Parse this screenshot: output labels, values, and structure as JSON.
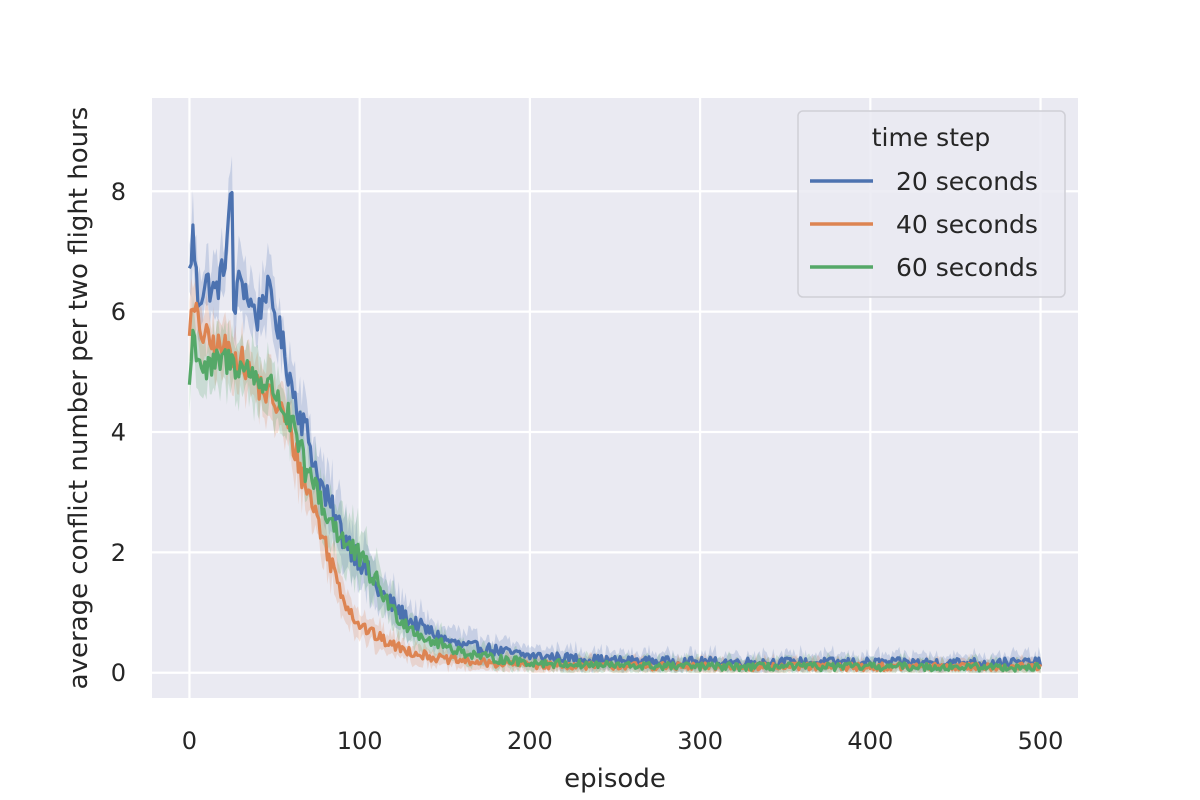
{
  "chart_data": {
    "type": "line",
    "title": "",
    "xlabel": "episode",
    "ylabel": "average conflict number per two flight hours",
    "xlim": [
      -22,
      522
    ],
    "ylim": [
      -0.42,
      9.55
    ],
    "xticks": [
      0,
      100,
      200,
      300,
      400,
      500
    ],
    "yticks": [
      0,
      2,
      4,
      6,
      8
    ],
    "grid": true,
    "background": "#eaeaf2",
    "legend": {
      "title": "time step",
      "position": "top-right"
    },
    "series": [
      {
        "name": "20 seconds",
        "color": "#4c72b0",
        "keypoints": [
          [
            0,
            6.6
          ],
          [
            2,
            7.3
          ],
          [
            5,
            6.2
          ],
          [
            10,
            6.5
          ],
          [
            15,
            6.3
          ],
          [
            20,
            6.7
          ],
          [
            25,
            8.0
          ],
          [
            26,
            6.0
          ],
          [
            30,
            6.6
          ],
          [
            35,
            6.2
          ],
          [
            40,
            5.9
          ],
          [
            45,
            6.4
          ],
          [
            50,
            6.0
          ],
          [
            55,
            5.4
          ],
          [
            60,
            4.8
          ],
          [
            65,
            4.3
          ],
          [
            70,
            3.9
          ],
          [
            75,
            3.3
          ],
          [
            80,
            2.9
          ],
          [
            90,
            2.3
          ],
          [
            100,
            1.9
          ],
          [
            110,
            1.4
          ],
          [
            120,
            1.1
          ],
          [
            130,
            0.85
          ],
          [
            140,
            0.7
          ],
          [
            150,
            0.55
          ],
          [
            160,
            0.45
          ],
          [
            175,
            0.4
          ],
          [
            190,
            0.32
          ],
          [
            200,
            0.28
          ],
          [
            250,
            0.2
          ],
          [
            300,
            0.18
          ],
          [
            400,
            0.17
          ],
          [
            500,
            0.17
          ]
        ],
        "noise": 0.28,
        "band": 0.45
      },
      {
        "name": "40 seconds",
        "color": "#dd8452",
        "keypoints": [
          [
            0,
            5.8
          ],
          [
            3,
            6.0
          ],
          [
            8,
            5.6
          ],
          [
            15,
            5.4
          ],
          [
            20,
            5.4
          ],
          [
            30,
            5.2
          ],
          [
            40,
            4.8
          ],
          [
            50,
            4.5
          ],
          [
            55,
            4.3
          ],
          [
            60,
            3.9
          ],
          [
            65,
            3.4
          ],
          [
            70,
            3.0
          ],
          [
            75,
            2.6
          ],
          [
            80,
            2.1
          ],
          [
            85,
            1.7
          ],
          [
            90,
            1.3
          ],
          [
            95,
            1.0
          ],
          [
            100,
            0.8
          ],
          [
            110,
            0.6
          ],
          [
            120,
            0.45
          ],
          [
            130,
            0.35
          ],
          [
            140,
            0.28
          ],
          [
            150,
            0.22
          ],
          [
            175,
            0.16
          ],
          [
            200,
            0.13
          ],
          [
            300,
            0.1
          ],
          [
            400,
            0.1
          ],
          [
            500,
            0.1
          ]
        ],
        "noise": 0.25,
        "band": 0.4
      },
      {
        "name": "60 seconds",
        "color": "#55a868",
        "keypoints": [
          [
            0,
            4.8
          ],
          [
            2,
            5.6
          ],
          [
            6,
            5.2
          ],
          [
            10,
            5.0
          ],
          [
            20,
            5.2
          ],
          [
            30,
            5.1
          ],
          [
            40,
            4.9
          ],
          [
            50,
            4.7
          ],
          [
            55,
            4.4
          ],
          [
            60,
            4.1
          ],
          [
            65,
            3.7
          ],
          [
            70,
            3.2
          ],
          [
            75,
            3.1
          ],
          [
            80,
            2.6
          ],
          [
            85,
            2.5
          ],
          [
            90,
            2.2
          ],
          [
            100,
            1.9
          ],
          [
            110,
            1.5
          ],
          [
            120,
            1.0
          ],
          [
            130,
            0.75
          ],
          [
            140,
            0.55
          ],
          [
            150,
            0.45
          ],
          [
            160,
            0.35
          ],
          [
            175,
            0.25
          ],
          [
            200,
            0.17
          ],
          [
            250,
            0.12
          ],
          [
            300,
            0.1
          ],
          [
            400,
            0.1
          ],
          [
            500,
            0.09
          ]
        ],
        "noise": 0.26,
        "band": 0.45
      }
    ]
  }
}
